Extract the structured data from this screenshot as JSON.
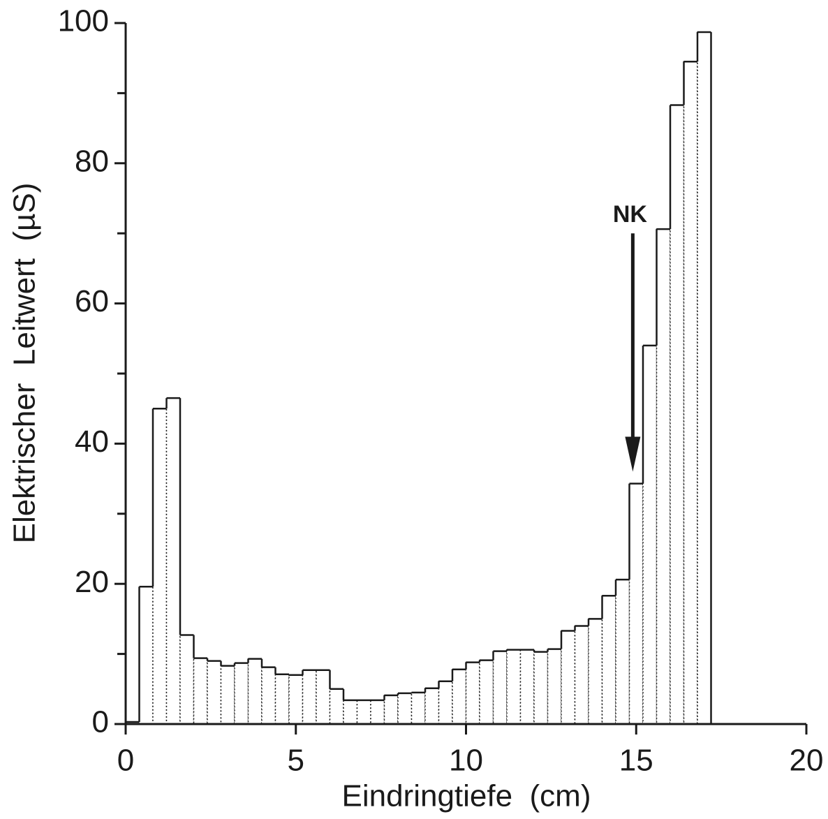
{
  "chart_data": {
    "type": "histogram",
    "xlabel": "Eindringtiefe  (cm)",
    "ylabel": "Elektrischer  Leitwert  (µS)",
    "bins": [
      0,
      0.4,
      0.8,
      1.2,
      1.6,
      2.0,
      2.4,
      2.8,
      3.2,
      3.6,
      4.0,
      4.4,
      4.8,
      5.2,
      5.6,
      6.0,
      6.4,
      6.8,
      7.2,
      7.6,
      8.0,
      8.4,
      8.8,
      9.2,
      9.6,
      10.0,
      10.4,
      10.8,
      11.2,
      11.6,
      12.0,
      12.4,
      12.8,
      13.2,
      13.6,
      14.0,
      14.4,
      14.8,
      15.2,
      15.6,
      16.0,
      16.4,
      16.8,
      17.2
    ],
    "values": [
      0.3,
      19.6,
      45,
      46.5,
      12.7,
      9.4,
      9.0,
      8.3,
      8.7,
      9.3,
      8.1,
      7.1,
      7.0,
      7.7,
      7.7,
      5.0,
      3.4,
      3.4,
      3.4,
      4.1,
      4.4,
      4.5,
      5.1,
      6.1,
      7.8,
      8.8,
      9.1,
      10.4,
      10.6,
      10.6,
      10.3,
      10.7,
      13.3,
      14.0,
      15.0,
      18.3,
      20.6,
      34.3,
      54,
      70.6,
      88.3,
      94.5,
      98.7
    ],
    "color": "#1a1a1a",
    "xlim": [
      0,
      20
    ],
    "xticks": [
      0,
      5,
      10,
      15,
      20
    ],
    "ylim": [
      0,
      100
    ],
    "yticks": [
      0,
      20,
      40,
      60,
      80,
      100
    ],
    "yminor_ticks": [
      10,
      30,
      50,
      70,
      90
    ],
    "annotation": {
      "text": "NK",
      "x": 14.9,
      "y_from": 70,
      "y_to": 36
    }
  }
}
